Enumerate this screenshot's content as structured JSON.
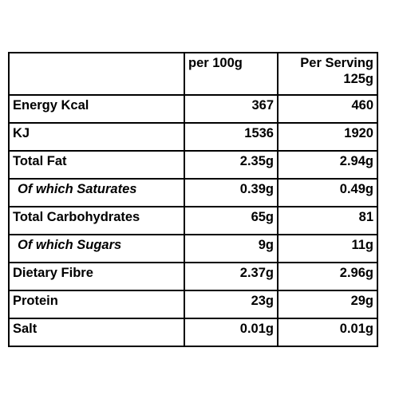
{
  "table": {
    "header": [
      "per 100g",
      "Per Serving 125g"
    ],
    "rows": [
      [
        "Energy Kcal",
        "367",
        "460"
      ],
      [
        "KJ",
        "1536",
        "1920"
      ],
      [
        "Total Fat",
        "2.35g",
        "2.94g"
      ],
      [
        "Of which Saturates",
        "0.39g",
        "0.49g"
      ],
      [
        "Total Carbohydrates",
        "65g",
        "81"
      ],
      [
        "Of which Sugars",
        "9g",
        "11g"
      ],
      [
        "Dietary Fibre",
        "2.37g",
        "2.96g"
      ],
      [
        "Protein",
        "23g",
        "29g"
      ],
      [
        "Salt",
        "0.01g",
        "0.01g"
      ]
    ],
    "italic_rows": [
      3,
      5
    ]
  }
}
